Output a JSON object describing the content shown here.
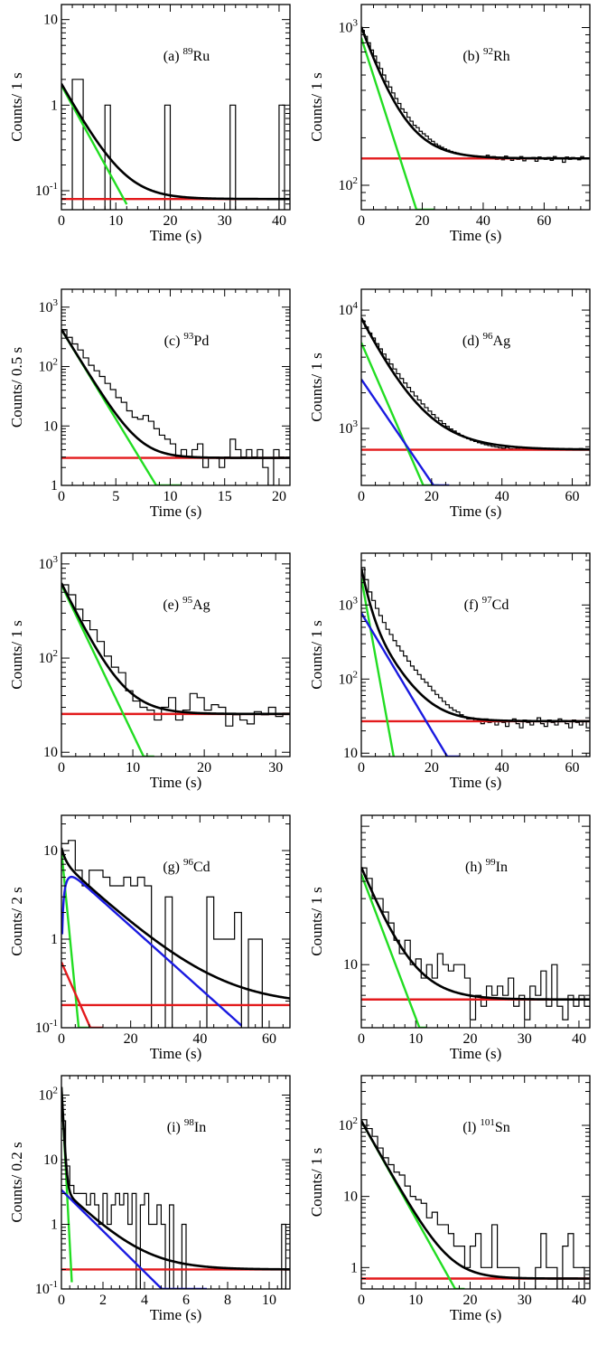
{
  "chart_data": [
    {
      "id": "a",
      "type": "line",
      "label": "(a)",
      "nucleus": "Ru",
      "mass": "89",
      "xlabel": "Time (s)",
      "ylabel": "Counts/ 1 s",
      "xlim": [
        0,
        42
      ],
      "ylim": [
        0.06,
        15
      ],
      "yscale": "log",
      "xticks": [
        0,
        10,
        20,
        30,
        40
      ],
      "yticks": [
        {
          "v": 0.1,
          "base": "10",
          "exp": "-1"
        },
        {
          "v": 1,
          "text": "1"
        },
        {
          "v": 10,
          "text": "10"
        }
      ],
      "histogram": {
        "bin": 1,
        "values": [
          0,
          0,
          2,
          2,
          0,
          0,
          0,
          0,
          1,
          0,
          0,
          0,
          0,
          0,
          0,
          0,
          0,
          0,
          0,
          1,
          0,
          0,
          0,
          0,
          0,
          0,
          0,
          0,
          0,
          0,
          0,
          1,
          0,
          0,
          0,
          0,
          0,
          0,
          0,
          0,
          1,
          0
        ]
      },
      "components": [
        {
          "name": "background",
          "color": "#e31a1c",
          "kind": "const",
          "value": 0.08
        },
        {
          "name": "decay",
          "color": "#22dd22",
          "kind": "exp",
          "a0": 1.7,
          "halflife": 2.6,
          "xmax": 12
        },
        {
          "name": "total",
          "color": "#000000",
          "kind": "sum"
        }
      ]
    },
    {
      "id": "b",
      "type": "line",
      "label": "(b)",
      "nucleus": "Rh",
      "mass": "92",
      "xlabel": "Time (s)",
      "ylabel": "Counts/ 1 s",
      "xlim": [
        0,
        75
      ],
      "ylim": [
        70,
        1400
      ],
      "yscale": "log",
      "xticks": [
        0,
        20,
        40,
        60
      ],
      "yticks": [
        {
          "v": 100,
          "base": "10",
          "exp": "2"
        },
        {
          "v": 1000,
          "base": "10",
          "exp": "3"
        }
      ],
      "histogram": {
        "bin": 1,
        "values": [
          960,
          880,
          800,
          720,
          660,
          600,
          550,
          500,
          455,
          420,
          385,
          355,
          330,
          305,
          290,
          270,
          255,
          240,
          232,
          220,
          212,
          205,
          196,
          190,
          183,
          178,
          174,
          170,
          167,
          164,
          162,
          160,
          158,
          156,
          155,
          154,
          153,
          152,
          151,
          150,
          149,
          155,
          147,
          152,
          146,
          150,
          145,
          153,
          148,
          144,
          150,
          146,
          152,
          143,
          149,
          147,
          150,
          142,
          151,
          148,
          146,
          150,
          144,
          152,
          147,
          149,
          140,
          151,
          146,
          150,
          148,
          145,
          152,
          147,
          149
        ]
      },
      "components": [
        {
          "name": "background",
          "color": "#e31a1c",
          "kind": "const",
          "value": 148
        },
        {
          "name": "decay",
          "color": "#22dd22",
          "kind": "exp",
          "a0": 860,
          "halflife": 5.0,
          "xmax": 24
        },
        {
          "name": "total",
          "color": "#000000",
          "kind": "sum"
        }
      ]
    },
    {
      "id": "c",
      "type": "line",
      "label": "(c)",
      "nucleus": "Pd",
      "mass": "93",
      "xlabel": "Time (s)",
      "ylabel": "Counts/ 0.5 s",
      "xlim": [
        0,
        21
      ],
      "ylim": [
        1,
        2000
      ],
      "yscale": "log",
      "xticks": [
        0,
        5,
        10,
        15,
        20
      ],
      "yticks": [
        {
          "v": 1,
          "text": "1"
        },
        {
          "v": 10,
          "text": "10"
        },
        {
          "v": 100,
          "base": "10",
          "exp": "2"
        },
        {
          "v": 1000,
          "base": "10",
          "exp": "3"
        }
      ],
      "histogram": {
        "bin": 0.5,
        "values": [
          420,
          310,
          240,
          190,
          140,
          105,
          85,
          68,
          52,
          41,
          30,
          25,
          18,
          14,
          13,
          15,
          12,
          9,
          7,
          6,
          5,
          3,
          4,
          3,
          4,
          5,
          2,
          3,
          3,
          2,
          3,
          6,
          4,
          3,
          4,
          3,
          4,
          2,
          1,
          4,
          3
        ]
      },
      "components": [
        {
          "name": "background",
          "color": "#e31a1c",
          "kind": "const",
          "value": 2.9
        },
        {
          "name": "decay",
          "color": "#22dd22",
          "kind": "exp",
          "a0": 420,
          "halflife": 1.0,
          "xmax": 11
        },
        {
          "name": "total",
          "color": "#000000",
          "kind": "sum"
        }
      ]
    },
    {
      "id": "d",
      "type": "line",
      "label": "(d)",
      "nucleus": "Ag",
      "mass": "96",
      "xlabel": "Time (s)",
      "ylabel": "Counts/ 1 s",
      "xlim": [
        0,
        65
      ],
      "ylim": [
        330,
        15000
      ],
      "yscale": "log",
      "xticks": [
        0,
        20,
        40,
        60
      ],
      "yticks": [
        {
          "v": 1000,
          "base": "10",
          "exp": "3"
        },
        {
          "v": 10000,
          "base": "10",
          "exp": "4"
        }
      ],
      "histogram": {
        "bin": 1,
        "values": [
          8100,
          7200,
          6400,
          5800,
          5200,
          4700,
          4250,
          3850,
          3500,
          3180,
          2900,
          2640,
          2420,
          2220,
          2040,
          1880,
          1740,
          1610,
          1500,
          1400,
          1310,
          1230,
          1160,
          1100,
          1040,
          990,
          950,
          910,
          875,
          845,
          818,
          795,
          775,
          758,
          742,
          728,
          716,
          705,
          696,
          688,
          680,
          690,
          672,
          668,
          681,
          664,
          676,
          660,
          672,
          666,
          679,
          661,
          673,
          668,
          662,
          677,
          665,
          670,
          661,
          674,
          667,
          663,
          676,
          660,
          668
        ]
      },
      "components": [
        {
          "name": "background",
          "color": "#e31a1c",
          "kind": "const",
          "value": 660
        },
        {
          "name": "decay-1",
          "color": "#22dd22",
          "kind": "exp",
          "a0": 5300,
          "halflife": 4.4,
          "xmax": 22
        },
        {
          "name": "decay-2",
          "color": "#1a1ae0",
          "kind": "exp",
          "a0": 2600,
          "halflife": 6.9,
          "xmax": 25
        },
        {
          "name": "total",
          "color": "#000000",
          "kind": "sum"
        }
      ]
    },
    {
      "id": "e",
      "type": "line",
      "label": "(e)",
      "nucleus": "Ag",
      "mass": "95",
      "xlabel": "Time (s)",
      "ylabel": "Counts/ 1 s",
      "xlim": [
        0,
        32
      ],
      "ylim": [
        9,
        1300
      ],
      "yscale": "log",
      "xticks": [
        0,
        10,
        20,
        30
      ],
      "yticks": [
        {
          "v": 10,
          "text": "10"
        },
        {
          "v": 100,
          "base": "10",
          "exp": "2"
        },
        {
          "v": 1000,
          "base": "10",
          "exp": "3"
        }
      ],
      "histogram": {
        "bin": 1,
        "values": [
          600,
          470,
          330,
          250,
          200,
          150,
          105,
          80,
          70,
          45,
          35,
          30,
          28,
          22,
          30,
          38,
          22,
          28,
          42,
          38,
          28,
          32,
          30,
          19,
          25,
          22,
          20,
          27,
          25,
          30,
          24,
          26
        ]
      },
      "components": [
        {
          "name": "background",
          "color": "#e31a1c",
          "kind": "const",
          "value": 25.5
        },
        {
          "name": "decay",
          "color": "#22dd22",
          "kind": "exp",
          "a0": 600,
          "halflife": 1.9,
          "xmax": 13
        },
        {
          "name": "total",
          "color": "#000000",
          "kind": "sum"
        }
      ]
    },
    {
      "id": "f",
      "type": "line",
      "label": "(f)",
      "nucleus": "Cd",
      "mass": "97",
      "xlabel": "Time (s)",
      "ylabel": "Counts/ 1 s",
      "xlim": [
        0,
        65
      ],
      "ylim": [
        9,
        5000
      ],
      "yscale": "log",
      "xticks": [
        0,
        20,
        40,
        60
      ],
      "yticks": [
        {
          "v": 10,
          "text": "10"
        },
        {
          "v": 100,
          "base": "10",
          "exp": "2"
        },
        {
          "v": 1000,
          "base": "10",
          "exp": "3"
        }
      ],
      "histogram": {
        "bin": 1,
        "values": [
          3200,
          2200,
          1500,
          1150,
          900,
          720,
          580,
          470,
          400,
          330,
          280,
          240,
          205,
          175,
          150,
          132,
          115,
          100,
          90,
          80,
          70,
          62,
          56,
          50,
          45,
          41,
          38,
          36,
          33,
          31,
          29,
          30,
          27,
          28,
          25,
          29,
          26,
          27,
          24,
          28,
          26,
          23,
          27,
          29,
          25,
          22,
          28,
          26,
          24,
          27,
          30,
          25,
          23,
          28,
          26,
          24,
          29,
          27,
          25,
          22,
          28,
          26,
          24,
          27,
          22
        ]
      },
      "components": [
        {
          "name": "background",
          "color": "#e31a1c",
          "kind": "const",
          "value": 27
        },
        {
          "name": "decay-1",
          "color": "#22dd22",
          "kind": "exp",
          "a0": 2300,
          "halflife": 1.15,
          "xmax": 9.5
        },
        {
          "name": "decay-2",
          "color": "#1a1ae0",
          "kind": "exp",
          "a0": 780,
          "halflife": 3.8,
          "xmax": 28
        },
        {
          "name": "total",
          "color": "#000000",
          "kind": "sum"
        }
      ]
    },
    {
      "id": "g",
      "type": "line",
      "label": "(g)",
      "nucleus": "Cd",
      "mass": "96",
      "xlabel": "Time (s)",
      "ylabel": "Counts/ 2 s",
      "xlim": [
        0,
        66
      ],
      "ylim": [
        0.1,
        25
      ],
      "yscale": "log",
      "xticks": [
        0,
        20,
        40,
        60
      ],
      "yticks": [
        {
          "v": 0.1,
          "base": "10",
          "exp": "-1"
        },
        {
          "v": 1,
          "text": "1"
        },
        {
          "v": 10,
          "text": "10"
        }
      ],
      "histogram": {
        "bin": 2,
        "values": [
          12,
          13,
          6,
          4,
          6,
          6,
          5,
          4,
          4,
          5,
          4,
          5,
          4,
          0,
          0,
          3,
          0,
          0,
          0,
          0,
          0,
          3,
          1,
          1,
          1,
          2,
          0,
          1,
          1,
          0,
          0,
          0,
          0
        ]
      },
      "components": [
        {
          "name": "background",
          "color": "#e31a1c",
          "kind": "const",
          "value": 0.18
        },
        {
          "name": "decay-1",
          "color": "#22dd22",
          "kind": "exp",
          "a0": 10,
          "halflife": 0.75,
          "xmax": 8
        },
        {
          "name": "decay-2",
          "color": "#e31a1c",
          "kind": "exp",
          "a0": 0.55,
          "halflife": 3.4,
          "xmax": 12
        },
        {
          "name": "daughter",
          "color": "#1a1ae0",
          "kind": "growdecay",
          "a0": 7,
          "halflife": 8.6,
          "tgrow": 1.2,
          "xmax": 52
        },
        {
          "name": "total",
          "color": "#000000",
          "kind": "sum"
        }
      ]
    },
    {
      "id": "h",
      "type": "line",
      "label": "(h)",
      "nucleus": "In",
      "mass": "99",
      "xlabel": "Time (s)",
      "ylabel": "Counts/ 1 s",
      "xlim": [
        0,
        42
      ],
      "ylim": [
        3.5,
        120
      ],
      "yscale": "log",
      "xticks": [
        0,
        10,
        20,
        30,
        40
      ],
      "yticks": [
        {
          "v": 10,
          "text": "10"
        }
      ],
      "histogram": {
        "bin": 1,
        "values": [
          50,
          42,
          30,
          30,
          24,
          20,
          15,
          12,
          15,
          10,
          11,
          8,
          10,
          8,
          12,
          10,
          9,
          10,
          10,
          8,
          4,
          6,
          5,
          7,
          6,
          7,
          6,
          8,
          5,
          6,
          4,
          7,
          6,
          9,
          5,
          10,
          5,
          4,
          6,
          5,
          6,
          5
        ]
      },
      "components": [
        {
          "name": "background",
          "color": "#e31a1c",
          "kind": "const",
          "value": 5.6
        },
        {
          "name": "decay",
          "color": "#22dd22",
          "kind": "exp",
          "a0": 45,
          "halflife": 2.9,
          "xmax": 12
        },
        {
          "name": "total",
          "color": "#000000",
          "kind": "sum"
        }
      ]
    },
    {
      "id": "i",
      "type": "line",
      "label": "(i)",
      "nucleus": "In",
      "mass": "98",
      "xlabel": "Time (s)",
      "ylabel": "Counts/ 0.2 s",
      "xlim": [
        0,
        11
      ],
      "ylim": [
        0.1,
        200
      ],
      "yscale": "log",
      "xticks": [
        0,
        2,
        4,
        6,
        8,
        10
      ],
      "yticks": [
        {
          "v": 0.1,
          "base": "10",
          "exp": "-1"
        },
        {
          "v": 1,
          "text": "1"
        },
        {
          "v": 10,
          "text": "10"
        },
        {
          "v": 100,
          "base": "10",
          "exp": "2"
        }
      ],
      "histogram": {
        "bin": 0.2,
        "values": [
          40,
          8,
          4,
          3,
          3,
          3,
          2,
          3,
          2,
          1,
          3,
          1,
          2,
          3,
          2,
          3,
          1,
          3,
          0,
          2,
          3,
          1,
          1,
          2,
          1,
          0,
          2,
          0,
          0,
          1,
          0,
          0,
          0,
          0,
          0,
          0,
          0,
          0,
          0,
          0,
          0,
          0,
          0,
          0,
          0,
          0,
          0,
          0,
          0,
          0,
          0,
          0,
          0,
          1,
          0
        ]
      },
      "components": [
        {
          "name": "background",
          "color": "#e31a1c",
          "kind": "const",
          "value": 0.2
        },
        {
          "name": "decay-1",
          "color": "#22dd22",
          "kind": "exp",
          "a0": 130,
          "halflife": 0.05,
          "xmax": 0.5
        },
        {
          "name": "decay-2",
          "color": "#1a1ae0",
          "kind": "exp",
          "a0": 3.4,
          "halflife": 0.95,
          "xmax": 7
        },
        {
          "name": "total",
          "color": "#000000",
          "kind": "sum"
        }
      ]
    },
    {
      "id": "l",
      "type": "line",
      "label": "(l)",
      "nucleus": "Sn",
      "mass": "101",
      "xlabel": "Time (s)",
      "ylabel": "Counts/ 1 s",
      "xlim": [
        0,
        42
      ],
      "ylim": [
        0.5,
        500
      ],
      "yscale": "log",
      "xticks": [
        0,
        10,
        20,
        30,
        40
      ],
      "yticks": [
        {
          "v": 1,
          "text": "1"
        },
        {
          "v": 10,
          "text": "10"
        },
        {
          "v": 100,
          "base": "10",
          "exp": "2"
        }
      ],
      "histogram": {
        "bin": 1,
        "values": [
          120,
          90,
          70,
          48,
          35,
          28,
          22,
          20,
          14,
          10,
          9,
          8,
          5,
          6,
          4,
          4,
          3,
          2,
          2,
          1,
          2,
          3,
          1,
          1,
          4,
          1,
          1,
          1,
          1,
          0,
          0,
          0,
          1,
          3,
          1,
          1,
          0,
          2,
          3,
          1,
          1,
          0
        ]
      },
      "components": [
        {
          "name": "background",
          "color": "#e31a1c",
          "kind": "const",
          "value": 0.7
        },
        {
          "name": "decay",
          "color": "#22dd22",
          "kind": "exp",
          "a0": 115,
          "halflife": 2.2,
          "xmax": 19
        },
        {
          "name": "total",
          "color": "#000000",
          "kind": "sum"
        }
      ]
    }
  ]
}
